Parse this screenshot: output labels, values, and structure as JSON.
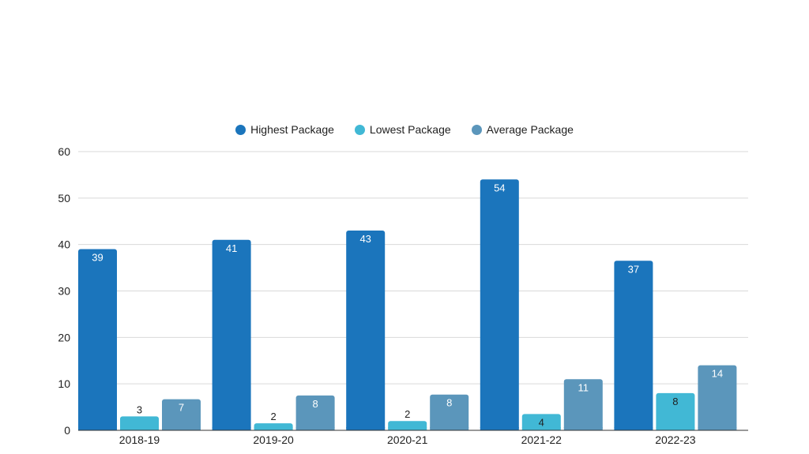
{
  "chart_data": {
    "type": "bar",
    "title": "",
    "xlabel": "",
    "ylabel": "",
    "categories": [
      "2018-19",
      "2019-20",
      "2020-21",
      "2021-22",
      "2022-23"
    ],
    "series": [
      {
        "name": "Highest Package",
        "color": "#1b75bc",
        "label_color": "#ffffff",
        "values": [
          39,
          41,
          43,
          54,
          37
        ]
      },
      {
        "name": "Lowest Package",
        "color": "#41b8d5",
        "label_color": "#1f1f1f",
        "values": [
          3,
          2,
          2,
          4,
          8
        ]
      },
      {
        "name": "Average Package",
        "color": "#5b96bb",
        "label_color": "#ffffff",
        "values": [
          7,
          8,
          8,
          11,
          14
        ]
      }
    ],
    "bar_heights": [
      [
        39,
        41,
        43,
        54,
        36.5
      ],
      [
        3,
        1.5,
        2,
        3.5,
        8
      ],
      [
        6.7,
        7.5,
        7.7,
        11,
        14
      ]
    ],
    "ylim": [
      0,
      60
    ],
    "yticks": [
      0,
      10,
      20,
      30,
      40,
      50,
      60
    ],
    "grid": true,
    "legend_position": "top-center"
  }
}
